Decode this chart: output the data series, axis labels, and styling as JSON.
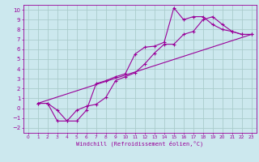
{
  "xlabel": "Windchill (Refroidissement éolien,°C)",
  "bg_color": "#cce8ee",
  "line_color": "#990099",
  "grid_color": "#aacccc",
  "xlim": [
    -0.5,
    23.5
  ],
  "ylim": [
    -2.5,
    10.5
  ],
  "xticks": [
    0,
    1,
    2,
    3,
    4,
    5,
    6,
    7,
    8,
    9,
    10,
    11,
    12,
    13,
    14,
    15,
    16,
    17,
    18,
    19,
    20,
    21,
    22,
    23
  ],
  "yticks": [
    -2,
    -1,
    0,
    1,
    2,
    3,
    4,
    5,
    6,
    7,
    8,
    9,
    10
  ],
  "line1_x": [
    1,
    2,
    3,
    4,
    5,
    6,
    7,
    8,
    9,
    10,
    11,
    12,
    13,
    14,
    15,
    16,
    17,
    18,
    19,
    20,
    21,
    22,
    23
  ],
  "line1_y": [
    0.5,
    0.5,
    -0.2,
    -1.3,
    -1.3,
    -0.2,
    2.5,
    2.8,
    3.2,
    3.5,
    5.5,
    6.2,
    6.3,
    6.7,
    10.2,
    9.0,
    9.3,
    9.3,
    8.5,
    8.0,
    7.8,
    7.5,
    7.5
  ],
  "line2_x": [
    1,
    2,
    3,
    4,
    5,
    6,
    7,
    8,
    9,
    10,
    11,
    12,
    13,
    14,
    15,
    16,
    17,
    18,
    19,
    20,
    21,
    22,
    23
  ],
  "line2_y": [
    0.5,
    0.5,
    -1.3,
    -1.3,
    -0.2,
    0.2,
    0.4,
    1.1,
    2.8,
    3.2,
    3.6,
    4.5,
    5.6,
    6.5,
    6.5,
    7.5,
    7.8,
    9.0,
    9.3,
    8.5,
    7.8,
    7.5,
    7.5
  ],
  "line3_x": [
    1,
    23
  ],
  "line3_y": [
    0.5,
    7.5
  ]
}
